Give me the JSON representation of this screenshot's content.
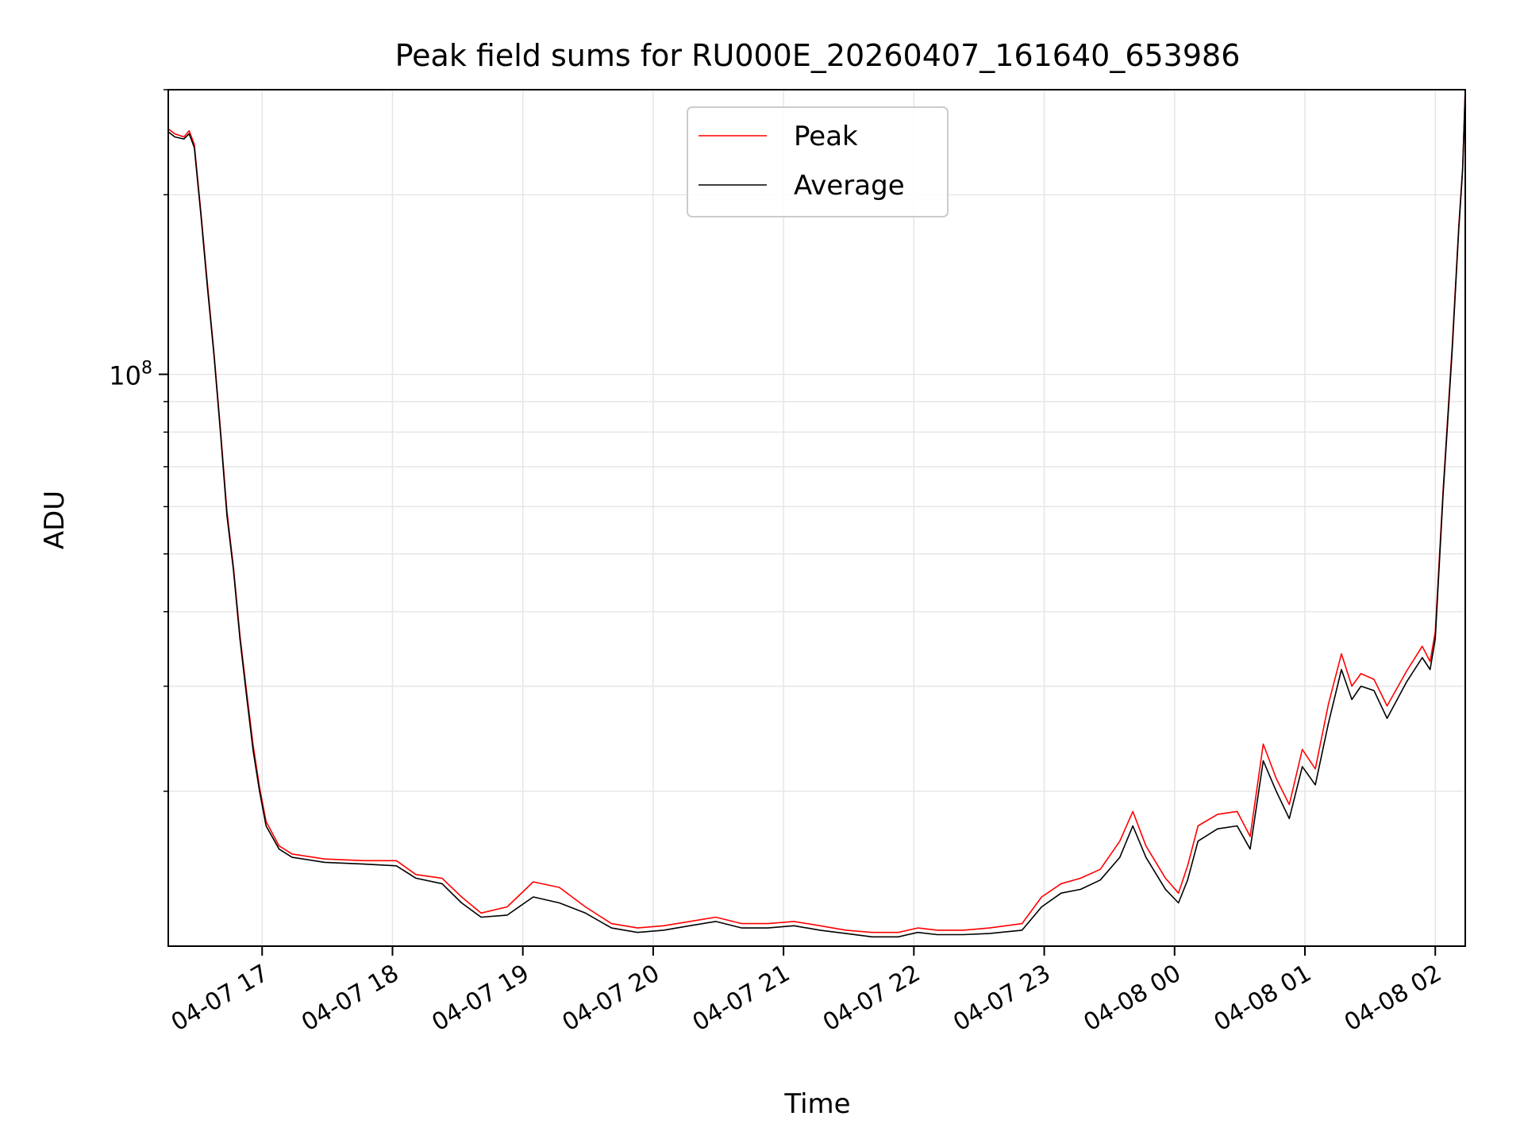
{
  "chart_data": {
    "type": "line",
    "title": "Peak field sums for RU000E_20260407_161640_653986",
    "xlabel": "Time",
    "ylabel": "ADU",
    "yscale": "log",
    "grid": true,
    "legend_position": "top-center",
    "x_unit": "hours since 2026-04-07 16:17",
    "xlim": [
      0,
      9.95
    ],
    "ylim": [
      11000000,
      300000000
    ],
    "x_ticks": [
      {
        "x": 0.72,
        "label": "04-07 17"
      },
      {
        "x": 1.72,
        "label": "04-07 18"
      },
      {
        "x": 2.72,
        "label": "04-07 19"
      },
      {
        "x": 3.72,
        "label": "04-07 20"
      },
      {
        "x": 4.72,
        "label": "04-07 21"
      },
      {
        "x": 5.72,
        "label": "04-07 22"
      },
      {
        "x": 6.72,
        "label": "04-07 23"
      },
      {
        "x": 7.72,
        "label": "04-08 00"
      },
      {
        "x": 8.72,
        "label": "04-08 01"
      },
      {
        "x": 9.72,
        "label": "04-08 02"
      }
    ],
    "y_ticks": [
      {
        "value": 100000000,
        "base": "10",
        "exp": "8"
      }
    ],
    "series": [
      {
        "name": "Average",
        "color": "#000000",
        "points": [
          [
            0.0,
            255000000
          ],
          [
            0.05,
            250000000
          ],
          [
            0.12,
            248000000
          ],
          [
            0.16,
            253000000
          ],
          [
            0.2,
            240000000
          ],
          [
            0.25,
            185000000
          ],
          [
            0.3,
            140000000
          ],
          [
            0.35,
            108000000
          ],
          [
            0.4,
            80000000
          ],
          [
            0.45,
            58000000
          ],
          [
            0.5,
            47000000
          ],
          [
            0.55,
            36000000
          ],
          [
            0.6,
            29000000
          ],
          [
            0.65,
            23500000
          ],
          [
            0.7,
            20000000
          ],
          [
            0.75,
            17500000
          ],
          [
            0.85,
            16000000
          ],
          [
            0.95,
            15500000
          ],
          [
            1.2,
            15200000
          ],
          [
            1.5,
            15100000
          ],
          [
            1.75,
            15000000
          ],
          [
            1.9,
            14300000
          ],
          [
            2.1,
            14000000
          ],
          [
            2.25,
            13000000
          ],
          [
            2.4,
            12300000
          ],
          [
            2.6,
            12400000
          ],
          [
            2.8,
            13300000
          ],
          [
            3.0,
            13000000
          ],
          [
            3.2,
            12500000
          ],
          [
            3.4,
            11800000
          ],
          [
            3.6,
            11600000
          ],
          [
            3.8,
            11700000
          ],
          [
            4.0,
            11900000
          ],
          [
            4.2,
            12100000
          ],
          [
            4.4,
            11800000
          ],
          [
            4.6,
            11800000
          ],
          [
            4.8,
            11900000
          ],
          [
            5.0,
            11700000
          ],
          [
            5.2,
            11550000
          ],
          [
            5.4,
            11400000
          ],
          [
            5.6,
            11400000
          ],
          [
            5.75,
            11600000
          ],
          [
            5.9,
            11500000
          ],
          [
            6.1,
            11500000
          ],
          [
            6.3,
            11550000
          ],
          [
            6.55,
            11700000
          ],
          [
            6.7,
            12800000
          ],
          [
            6.85,
            13500000
          ],
          [
            7.0,
            13700000
          ],
          [
            7.15,
            14200000
          ],
          [
            7.3,
            15500000
          ],
          [
            7.4,
            17500000
          ],
          [
            7.5,
            15500000
          ],
          [
            7.65,
            13700000
          ],
          [
            7.75,
            13000000
          ],
          [
            7.82,
            14200000
          ],
          [
            7.9,
            16500000
          ],
          [
            8.05,
            17300000
          ],
          [
            8.2,
            17500000
          ],
          [
            8.3,
            16000000
          ],
          [
            8.4,
            22500000
          ],
          [
            8.5,
            20000000
          ],
          [
            8.6,
            18000000
          ],
          [
            8.7,
            22000000
          ],
          [
            8.8,
            20500000
          ],
          [
            8.9,
            26000000
          ],
          [
            9.0,
            32000000
          ],
          [
            9.08,
            28500000
          ],
          [
            9.15,
            30000000
          ],
          [
            9.25,
            29500000
          ],
          [
            9.35,
            26500000
          ],
          [
            9.5,
            30500000
          ],
          [
            9.62,
            33500000
          ],
          [
            9.68,
            32000000
          ],
          [
            9.72,
            36000000
          ],
          [
            9.78,
            63000000
          ],
          [
            9.85,
            110000000
          ],
          [
            9.9,
            175000000
          ],
          [
            9.93,
            220000000
          ],
          [
            9.95,
            300000000
          ]
        ]
      },
      {
        "name": "Peak",
        "color": "#ff0000",
        "points": [
          [
            0.0,
            258000000
          ],
          [
            0.05,
            253000000
          ],
          [
            0.12,
            250000000
          ],
          [
            0.16,
            256000000
          ],
          [
            0.2,
            243000000
          ],
          [
            0.25,
            187000000
          ],
          [
            0.3,
            142000000
          ],
          [
            0.35,
            109000000
          ],
          [
            0.4,
            81000000
          ],
          [
            0.45,
            59000000
          ],
          [
            0.5,
            47500000
          ],
          [
            0.55,
            36500000
          ],
          [
            0.6,
            29500000
          ],
          [
            0.65,
            24000000
          ],
          [
            0.7,
            20300000
          ],
          [
            0.75,
            17800000
          ],
          [
            0.85,
            16200000
          ],
          [
            0.95,
            15700000
          ],
          [
            1.2,
            15400000
          ],
          [
            1.5,
            15300000
          ],
          [
            1.75,
            15300000
          ],
          [
            1.9,
            14500000
          ],
          [
            2.1,
            14300000
          ],
          [
            2.25,
            13300000
          ],
          [
            2.4,
            12500000
          ],
          [
            2.6,
            12800000
          ],
          [
            2.8,
            14100000
          ],
          [
            3.0,
            13800000
          ],
          [
            3.2,
            12800000
          ],
          [
            3.4,
            12000000
          ],
          [
            3.6,
            11800000
          ],
          [
            3.8,
            11900000
          ],
          [
            4.0,
            12100000
          ],
          [
            4.2,
            12300000
          ],
          [
            4.4,
            12000000
          ],
          [
            4.6,
            12000000
          ],
          [
            4.8,
            12100000
          ],
          [
            5.0,
            11900000
          ],
          [
            5.2,
            11700000
          ],
          [
            5.4,
            11600000
          ],
          [
            5.6,
            11600000
          ],
          [
            5.75,
            11800000
          ],
          [
            5.9,
            11700000
          ],
          [
            6.1,
            11700000
          ],
          [
            6.3,
            11800000
          ],
          [
            6.55,
            12000000
          ],
          [
            6.7,
            13300000
          ],
          [
            6.85,
            14000000
          ],
          [
            7.0,
            14300000
          ],
          [
            7.15,
            14800000
          ],
          [
            7.3,
            16500000
          ],
          [
            7.4,
            18500000
          ],
          [
            7.5,
            16200000
          ],
          [
            7.65,
            14300000
          ],
          [
            7.75,
            13500000
          ],
          [
            7.82,
            15000000
          ],
          [
            7.9,
            17500000
          ],
          [
            8.05,
            18300000
          ],
          [
            8.2,
            18500000
          ],
          [
            8.3,
            16800000
          ],
          [
            8.4,
            24000000
          ],
          [
            8.5,
            21000000
          ],
          [
            8.6,
            19000000
          ],
          [
            8.7,
            23500000
          ],
          [
            8.8,
            21800000
          ],
          [
            8.9,
            28000000
          ],
          [
            9.0,
            34000000
          ],
          [
            9.08,
            30000000
          ],
          [
            9.15,
            31500000
          ],
          [
            9.25,
            30800000
          ],
          [
            9.35,
            27800000
          ],
          [
            9.5,
            31800000
          ],
          [
            9.62,
            35000000
          ],
          [
            9.68,
            33000000
          ],
          [
            9.72,
            37000000
          ],
          [
            9.78,
            64000000
          ],
          [
            9.85,
            112000000
          ],
          [
            9.9,
            177000000
          ],
          [
            9.93,
            222000000
          ],
          [
            9.95,
            300000000
          ]
        ]
      }
    ],
    "legend": [
      {
        "label": "Peak",
        "color": "#ff0000"
      },
      {
        "label": "Average",
        "color": "#000000"
      }
    ]
  }
}
